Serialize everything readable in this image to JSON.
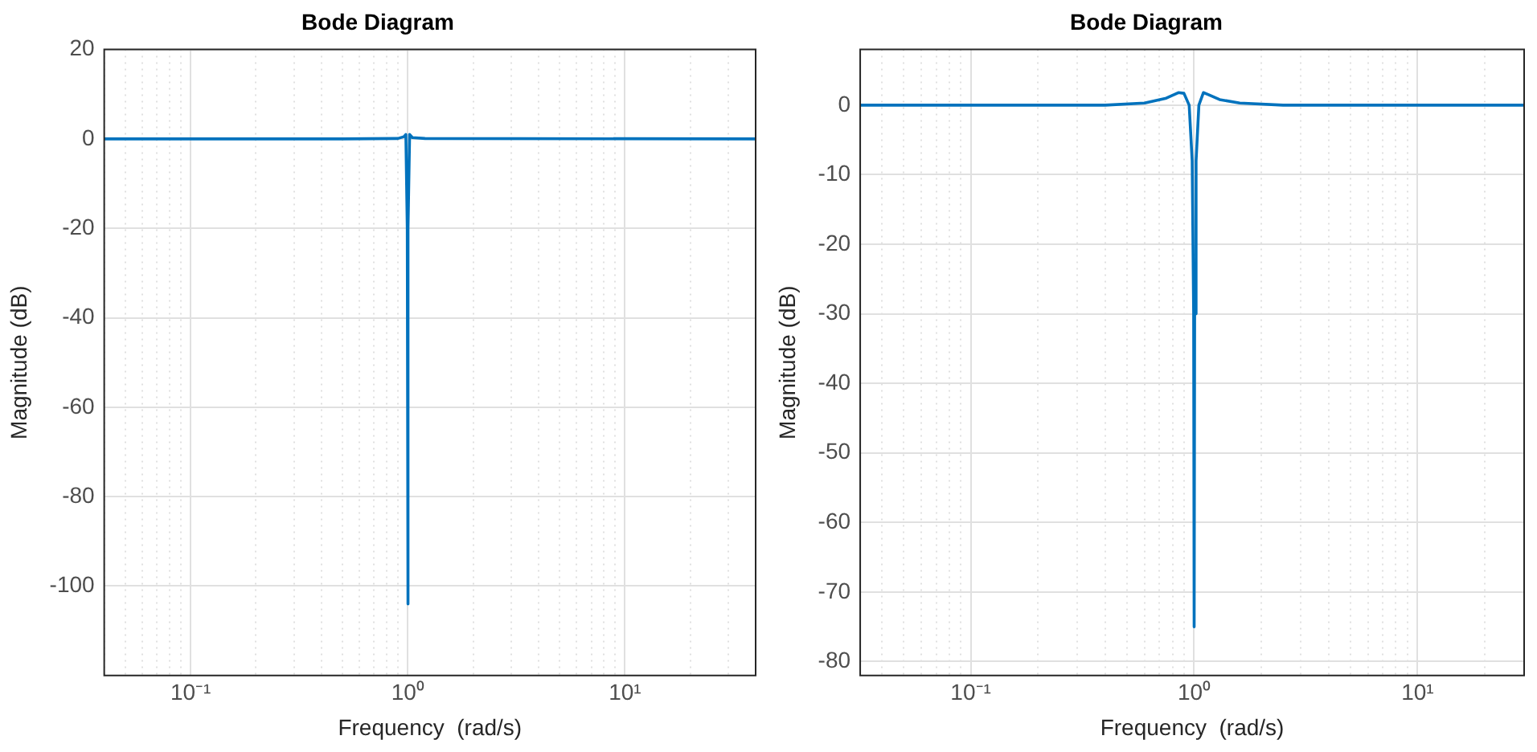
{
  "chart_data": [
    {
      "type": "line",
      "title": "Bode Diagram",
      "xlabel": "Frequency  (rad/s)",
      "ylabel": "Magnitude (dB)",
      "log": "x",
      "grid": true,
      "marker": "none",
      "line_style": "solid",
      "xlim": [
        0.04,
        40
      ],
      "ylim": [
        -120,
        20
      ],
      "yticks": [
        -100,
        -80,
        -60,
        -40,
        -20,
        0,
        20
      ],
      "xticks": [
        {
          "value": 0.04,
          "label": null
        },
        {
          "value": 0.05,
          "label": null
        },
        {
          "value": 0.06,
          "label": null
        },
        {
          "value": 0.07,
          "label": null
        },
        {
          "value": 0.08,
          "label": null
        },
        {
          "value": 0.09,
          "label": null
        },
        {
          "value": 0.1,
          "label": "10⁻¹"
        },
        {
          "value": 0.2,
          "label": null
        },
        {
          "value": 0.3,
          "label": null
        },
        {
          "value": 0.4,
          "label": null
        },
        {
          "value": 0.5,
          "label": null
        },
        {
          "value": 0.6,
          "label": null
        },
        {
          "value": 0.7,
          "label": null
        },
        {
          "value": 0.8,
          "label": null
        },
        {
          "value": 0.9,
          "label": null
        },
        {
          "value": 1,
          "label": "10⁰"
        },
        {
          "value": 2,
          "label": null
        },
        {
          "value": 3,
          "label": null
        },
        {
          "value": 4,
          "label": null
        },
        {
          "value": 5,
          "label": null
        },
        {
          "value": 6,
          "label": null
        },
        {
          "value": 7,
          "label": null
        },
        {
          "value": 8,
          "label": null
        },
        {
          "value": 9,
          "label": null
        },
        {
          "value": 10,
          "label": "10¹"
        },
        {
          "value": 20,
          "label": null
        },
        {
          "value": 30,
          "label": null
        }
      ],
      "series": [
        {
          "color": "#0072bd",
          "x": [
            0.04,
            0.5,
            0.9,
            0.96,
            0.98,
            0.995,
            1.0,
            1.005,
            1.02,
            1.05,
            1.2,
            40
          ],
          "values": [
            0,
            0,
            0.1,
            0.5,
            1,
            -20,
            -104,
            -20,
            1,
            0.3,
            0.1,
            0
          ]
        }
      ]
    },
    {
      "type": "line",
      "title": "Bode Diagram",
      "xlabel": "Frequency  (rad/s)",
      "ylabel": "Magnitude (dB)",
      "log": "x",
      "grid": true,
      "marker": "none",
      "line_style": "solid",
      "xlim": [
        0.032,
        30
      ],
      "ylim": [
        -82,
        8
      ],
      "yticks": [
        -80,
        -70,
        -60,
        -50,
        -40,
        -30,
        -20,
        -10,
        0
      ],
      "xticks": [
        {
          "value": 0.04,
          "label": null
        },
        {
          "value": 0.05,
          "label": null
        },
        {
          "value": 0.06,
          "label": null
        },
        {
          "value": 0.07,
          "label": null
        },
        {
          "value": 0.08,
          "label": null
        },
        {
          "value": 0.09,
          "label": null
        },
        {
          "value": 0.1,
          "label": "10⁻¹"
        },
        {
          "value": 0.2,
          "label": null
        },
        {
          "value": 0.3,
          "label": null
        },
        {
          "value": 0.4,
          "label": null
        },
        {
          "value": 0.5,
          "label": null
        },
        {
          "value": 0.6,
          "label": null
        },
        {
          "value": 0.7,
          "label": null
        },
        {
          "value": 0.8,
          "label": null
        },
        {
          "value": 0.9,
          "label": null
        },
        {
          "value": 1,
          "label": "10⁰"
        },
        {
          "value": 2,
          "label": null
        },
        {
          "value": 3,
          "label": null
        },
        {
          "value": 4,
          "label": null
        },
        {
          "value": 5,
          "label": null
        },
        {
          "value": 6,
          "label": null
        },
        {
          "value": 7,
          "label": null
        },
        {
          "value": 8,
          "label": null
        },
        {
          "value": 9,
          "label": null
        },
        {
          "value": 10,
          "label": "10¹"
        },
        {
          "value": 20,
          "label": null
        }
      ],
      "series": [
        {
          "color": "#0072bd",
          "x": [
            0.032,
            0.4,
            0.6,
            0.75,
            0.85,
            0.9,
            0.95,
            0.98,
            0.995,
            1.0,
            1.005,
            1.02,
            1.05,
            1.1,
            1.16,
            1.3,
            1.6,
            2.5,
            30
          ],
          "values": [
            0,
            0,
            0.3,
            1,
            1.8,
            1.7,
            0,
            -8,
            -30,
            -75,
            -30,
            -8,
            0,
            1.8,
            1.5,
            0.8,
            0.3,
            0,
            0
          ]
        }
      ]
    }
  ]
}
